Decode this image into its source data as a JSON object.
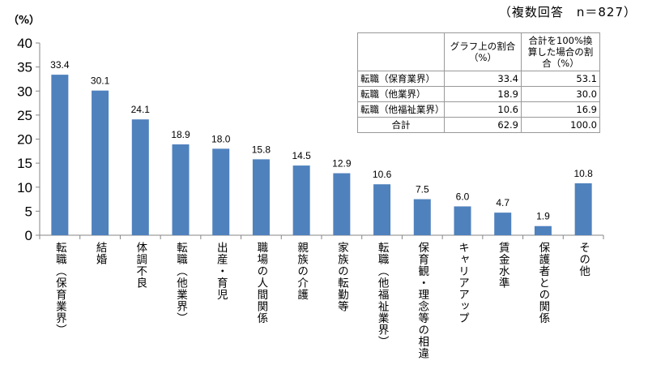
{
  "note": "（複数回答　n＝827）",
  "chart_data": {
    "type": "bar",
    "ylabel": "（%）",
    "ylim": [
      0,
      40
    ],
    "yticks": [
      0,
      5,
      10,
      15,
      20,
      25,
      30,
      35,
      40
    ],
    "grid": false,
    "bar_color": "#4F81BD",
    "categories": [
      "転職（保育業界）",
      "結婚",
      "体調不良",
      "転職（他業界）",
      "出産・育児",
      "職場の人間関係",
      "親族の介護",
      "家族の転勤等",
      "転職（他福祉業界）",
      "保育観・理念等の相違",
      "キャリアアップ",
      "賃金水準",
      "保護者との関係",
      "その他"
    ],
    "values": [
      33.4,
      30.1,
      24.1,
      18.9,
      18.0,
      15.8,
      14.5,
      12.9,
      10.6,
      7.5,
      6.0,
      4.7,
      1.9,
      10.8
    ],
    "value_labels": [
      "33.4",
      "30.1",
      "24.1",
      "18.9",
      "18.0",
      "15.8",
      "14.5",
      "12.9",
      "10.6",
      "7.5",
      "6.0",
      "4.7",
      "1.9",
      "10.8"
    ]
  },
  "table": {
    "headers": [
      "",
      "グラフ上の割合（%）",
      "合計を100%換算した場合の割合（%）"
    ],
    "rows": [
      [
        "転職（保育業界）",
        "33.4",
        "53.1"
      ],
      [
        "転職（他業界）",
        "18.9",
        "30.0"
      ],
      [
        "転職（他福祉業界）",
        "10.6",
        "16.9"
      ],
      [
        "合計",
        "62.9",
        "100.0"
      ]
    ]
  }
}
